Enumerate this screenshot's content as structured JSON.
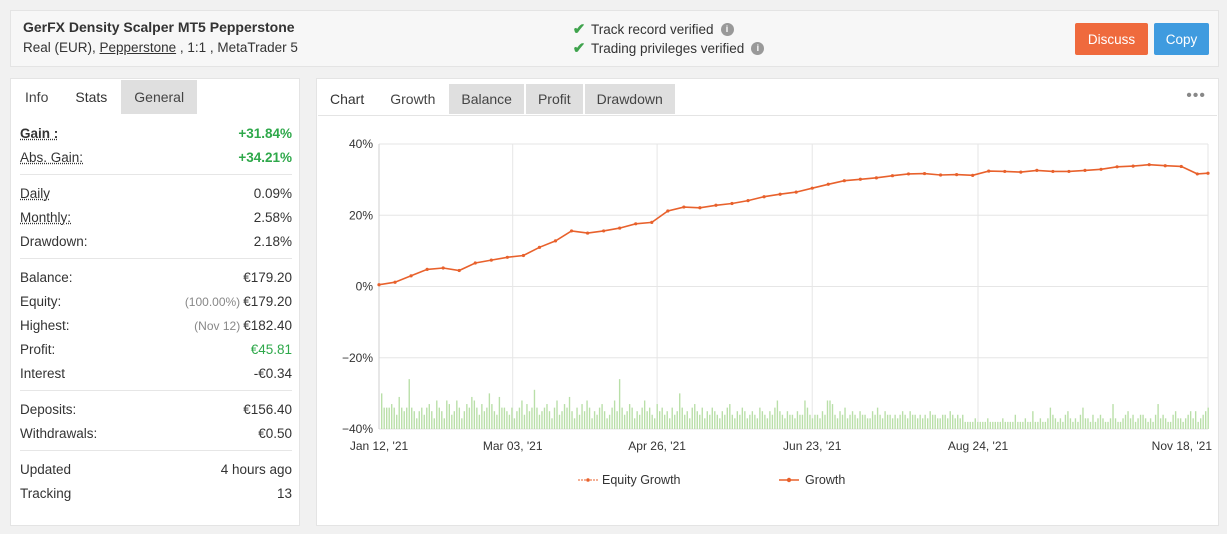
{
  "header": {
    "title": "GerFX Density Scalper MT5 Pepperstone",
    "account_prefix": "Real (EUR),",
    "broker": "Pepperstone",
    "account_suffix": ", 1:1 , MetaTrader 5",
    "verify_1": "Track record verified",
    "verify_2": "Trading privileges verified",
    "discuss": "Discuss",
    "copy": "Copy"
  },
  "left_tabs": [
    "Info",
    "Stats",
    "General"
  ],
  "stats": {
    "gain_label": "Gain :",
    "gain": "+31.84%",
    "abs_gain_label": "Abs. Gain:",
    "abs_gain": "+34.21%",
    "daily_label": "Daily",
    "daily": "0.09%",
    "monthly_label": "Monthly:",
    "monthly": "2.58%",
    "drawdown_label": "Drawdown:",
    "drawdown": "2.18%",
    "balance_label": "Balance:",
    "balance": "€179.20",
    "equity_label": "Equity:",
    "equity_pct": "(100.00%)",
    "equity": "€179.20",
    "highest_label": "Highest:",
    "highest_date": "(Nov 12)",
    "highest": "€182.40",
    "profit_label": "Profit:",
    "profit": "€45.81",
    "interest_label": "Interest",
    "interest": "-€0.34",
    "deposits_label": "Deposits:",
    "deposits": "€156.40",
    "withdrawals_label": "Withdrawals:",
    "withdrawals": "€0.50",
    "updated_label": "Updated",
    "updated": "4 hours ago",
    "tracking_label": "Tracking",
    "tracking": "13"
  },
  "chart_tabs": [
    "Chart",
    "Growth",
    "Balance",
    "Profit",
    "Drawdown"
  ],
  "more_icon": "ellipsis-icon",
  "colors": {
    "accent_orange": "#ef6a3d",
    "accent_blue": "#3f9bdf",
    "positive_green": "#2ea84a",
    "line_growth": "#e8612c",
    "bar_green": "#b9dfa8"
  },
  "chart_data": {
    "type": "line",
    "title": "",
    "y_tick_labels": [
      "40%",
      "20%",
      "0%",
      "−20%",
      "−40%"
    ],
    "y_ticks": [
      40,
      20,
      0,
      -20,
      -40
    ],
    "ylim": [
      -40,
      40
    ],
    "x_tick_labels": [
      "Jan 12, '21",
      "Mar 03, '21",
      "Apr 26, '21",
      "Jun 23, '21",
      "Aug 24, '21",
      "Nov 18, '21"
    ],
    "x_tick_days": [
      0,
      50,
      104,
      162,
      224,
      310
    ],
    "x_range_days": [
      0,
      310
    ],
    "grid": true,
    "legend_position": "bottom",
    "series": [
      {
        "name": "Equity Growth",
        "x_days": [
          0,
          6,
          12,
          18,
          24,
          30,
          36,
          42,
          48,
          54,
          60,
          66,
          72,
          78,
          84,
          90,
          96,
          102,
          108,
          114,
          120,
          126,
          132,
          138,
          144,
          150,
          156,
          162,
          168,
          174,
          180,
          186,
          192,
          198,
          204,
          210,
          216,
          222,
          228,
          234,
          240,
          246,
          252,
          258,
          264,
          270,
          276,
          282,
          288,
          294,
          300,
          306,
          310
        ],
        "y": [
          0.5,
          1.2,
          3.0,
          4.8,
          5.2,
          4.5,
          6.6,
          7.4,
          8.2,
          8.7,
          11.0,
          12.8,
          15.6,
          15.0,
          15.6,
          16.4,
          17.6,
          18.0,
          21.2,
          22.3,
          22.1,
          22.8,
          23.3,
          24.1,
          25.2,
          25.9,
          26.5,
          27.6,
          28.7,
          29.7,
          30.1,
          30.5,
          31.1,
          31.6,
          31.7,
          31.3,
          31.4,
          31.2,
          32.4,
          32.3,
          32.1,
          32.6,
          32.3,
          32.3,
          32.6,
          32.9,
          33.6,
          33.8,
          34.2,
          33.9,
          33.7,
          31.6,
          31.8
        ]
      },
      {
        "name": "Growth",
        "x_days": [
          0,
          6,
          12,
          18,
          24,
          30,
          36,
          42,
          48,
          54,
          60,
          66,
          72,
          78,
          84,
          90,
          96,
          102,
          108,
          114,
          120,
          126,
          132,
          138,
          144,
          150,
          156,
          162,
          168,
          174,
          180,
          186,
          192,
          198,
          204,
          210,
          216,
          222,
          228,
          234,
          240,
          246,
          252,
          258,
          264,
          270,
          276,
          282,
          288,
          294,
          300,
          306,
          310
        ],
        "y": [
          0.5,
          1.2,
          3.0,
          4.8,
          5.2,
          4.5,
          6.6,
          7.4,
          8.2,
          8.7,
          11.0,
          12.8,
          15.6,
          15.0,
          15.6,
          16.4,
          17.6,
          18.0,
          21.2,
          22.3,
          22.1,
          22.8,
          23.3,
          24.1,
          25.2,
          25.9,
          26.5,
          27.6,
          28.7,
          29.7,
          30.1,
          30.5,
          31.1,
          31.6,
          31.7,
          31.3,
          31.4,
          31.2,
          32.4,
          32.3,
          32.1,
          32.6,
          32.3,
          32.3,
          32.6,
          32.9,
          33.6,
          33.8,
          34.2,
          33.9,
          33.7,
          31.6,
          31.8
        ]
      }
    ],
    "bars_daily_growth": [
      10,
      6,
      6,
      6,
      7,
      6,
      4,
      9,
      6,
      5,
      6,
      14,
      6,
      5,
      3,
      5,
      6,
      4,
      6,
      7,
      5,
      3,
      8,
      6,
      5,
      3,
      8,
      7,
      4,
      5,
      8,
      6,
      3,
      5,
      7,
      6,
      9,
      8,
      6,
      4,
      7,
      5,
      6,
      10,
      7,
      5,
      4,
      9,
      6,
      6,
      5,
      4,
      6,
      3,
      5,
      6,
      8,
      4,
      7,
      5,
      6,
      11,
      6,
      4,
      5,
      6,
      7,
      5,
      3,
      6,
      8,
      4,
      5,
      7,
      6,
      9,
      5,
      3,
      6,
      4,
      7,
      5,
      8,
      6,
      3,
      5,
      4,
      6,
      7,
      5,
      3,
      4,
      6,
      8,
      5,
      14,
      6,
      4,
      5,
      7,
      6,
      3,
      5,
      4,
      6,
      8,
      5,
      6,
      4,
      3,
      7,
      5,
      6,
      4,
      5,
      3,
      6,
      4,
      5,
      10,
      6,
      4,
      5,
      3,
      6,
      7,
      5,
      4,
      6,
      3,
      5,
      4,
      6,
      5,
      4,
      3,
      5,
      4,
      6,
      7,
      4,
      3,
      5,
      4,
      6,
      5,
      3,
      4,
      5,
      4,
      3,
      6,
      5,
      4,
      3,
      5,
      4,
      6,
      8,
      5,
      4,
      3,
      5,
      4,
      4,
      3,
      5,
      4,
      4,
      8,
      6,
      4,
      3,
      4,
      4,
      3,
      5,
      4,
      8,
      8,
      7,
      4,
      3,
      5,
      4,
      6,
      3,
      4,
      5,
      4,
      3,
      5,
      4,
      4,
      3,
      3,
      5,
      4,
      6,
      4,
      3,
      5,
      4,
      4,
      3,
      4,
      3,
      4,
      5,
      4,
      3,
      5,
      4,
      4,
      3,
      4,
      3,
      4,
      3,
      5,
      4,
      4,
      3,
      3,
      4,
      4,
      3,
      5,
      4,
      3,
      4,
      3,
      4,
      2,
      2,
      2,
      2,
      3,
      2,
      2,
      2,
      2,
      3,
      2,
      2,
      2,
      2,
      2,
      3,
      2,
      2,
      2,
      2,
      4,
      2,
      2,
      2,
      3,
      2,
      2,
      5,
      2,
      2,
      3,
      2,
      2,
      3,
      6,
      4,
      3,
      2,
      3,
      2,
      4,
      5,
      3,
      2,
      3,
      2,
      4,
      6,
      3,
      3,
      2,
      4,
      2,
      3,
      4,
      3,
      2,
      2,
      3,
      7,
      3,
      2,
      2,
      3,
      4,
      5,
      3,
      4,
      2,
      3,
      4,
      4,
      3,
      2,
      3,
      2,
      4,
      7,
      3,
      4,
      3,
      2,
      2,
      4,
      5,
      3,
      3,
      2,
      3,
      4,
      5,
      3,
      5,
      2,
      3,
      4,
      5,
      6
    ]
  }
}
